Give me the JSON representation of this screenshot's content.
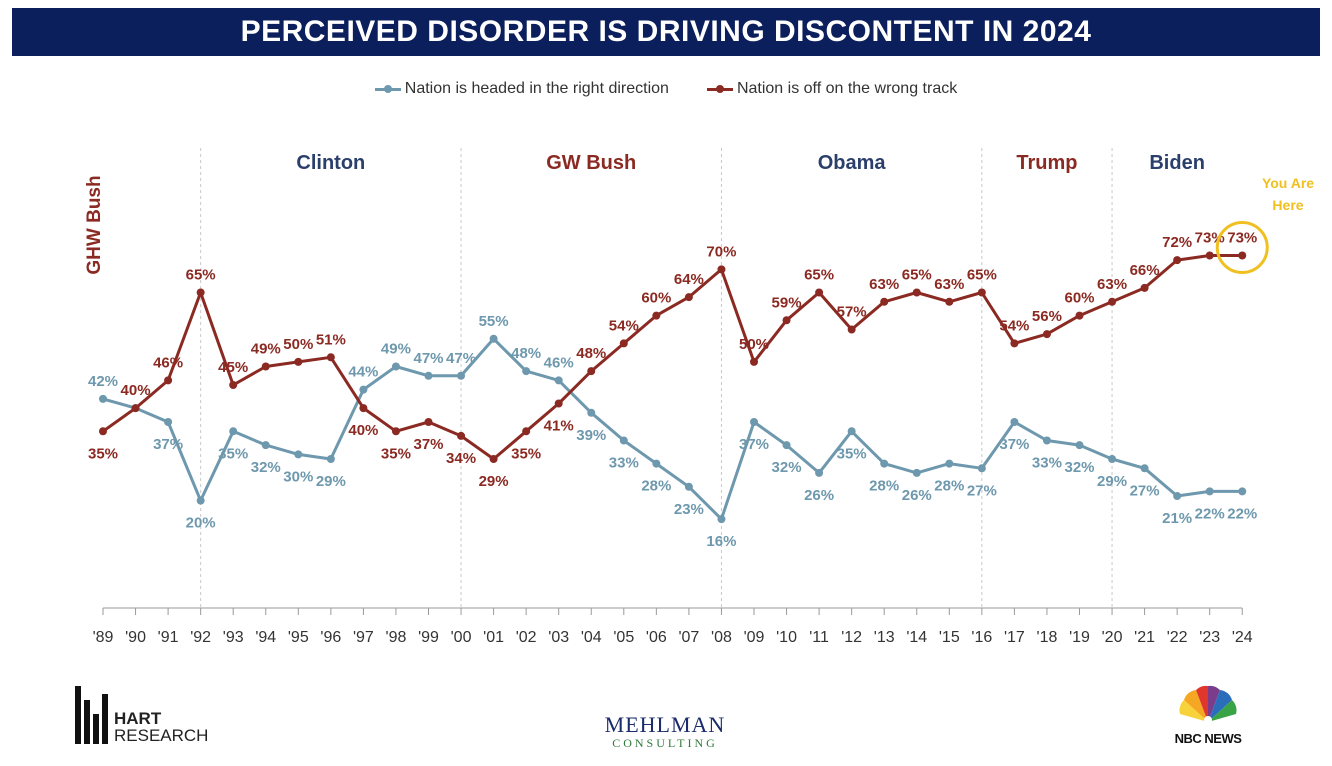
{
  "chart_data": {
    "type": "line",
    "title": "PERCEIVED DISORDER IS DRIVING DISCONTENT IN 2024",
    "categories": [
      "'89",
      "'90",
      "'91",
      "'92",
      "'93",
      "'94",
      "'95",
      "'96",
      "'97",
      "'98",
      "'99",
      "'00",
      "'01",
      "'02",
      "'03",
      "'04",
      "'05",
      "'06",
      "'07",
      "'08",
      "'09",
      "'10",
      "'11",
      "'12",
      "'13",
      "'14",
      "'15",
      "'16",
      "'17",
      "'18",
      "'19",
      "'20",
      "'21",
      "'22",
      "'23",
      "'24"
    ],
    "series": [
      {
        "name": "Nation is headed in the right direction",
        "color": "#6e98ad",
        "values": [
          42,
          40,
          37,
          20,
          35,
          32,
          30,
          29,
          44,
          49,
          47,
          47,
          55,
          48,
          46,
          39,
          33,
          28,
          23,
          16,
          37,
          32,
          26,
          35,
          28,
          26,
          28,
          27,
          37,
          33,
          32,
          29,
          27,
          21,
          22,
          22
        ],
        "labels": [
          "42%",
          "",
          "37%",
          "20%",
          "35%",
          "32%",
          "30%",
          "29%",
          "44%",
          "49%",
          "47%",
          "47%",
          "55%",
          "48%",
          "46%",
          "39%",
          "33%",
          "28%",
          "23%",
          "16%",
          "37%",
          "32%",
          "26%",
          "35%",
          "28%",
          "26%",
          "28%",
          "27%",
          "37%",
          "33%",
          "32%",
          "29%",
          "27%",
          "21%",
          "22%",
          "22%"
        ]
      },
      {
        "name": "Nation is off on the wrong track",
        "color": "#8b2a22",
        "values": [
          35,
          40,
          46,
          65,
          45,
          49,
          50,
          51,
          40,
          35,
          37,
          34,
          29,
          35,
          41,
          48,
          54,
          60,
          64,
          70,
          50,
          59,
          65,
          57,
          63,
          65,
          63,
          65,
          54,
          56,
          60,
          63,
          66,
          72,
          73,
          73
        ],
        "labels": [
          "35%",
          "40%",
          "46%",
          "65%",
          "45%",
          "49%",
          "50%",
          "51%",
          "40%",
          "35%",
          "37%",
          "34%",
          "29%",
          "35%",
          "41%",
          "48%",
          "54%",
          "60%",
          "64%",
          "70%",
          "50%",
          "59%",
          "65%",
          "57%",
          "63%",
          "65%",
          "63%",
          "65%",
          "54%",
          "56%",
          "60%",
          "63%",
          "66%",
          "72%",
          "73%",
          "73%"
        ]
      }
    ],
    "eras": [
      {
        "name": "GHW Bush",
        "color": "#8b2a22",
        "start_index": 0,
        "end_index": 3
      },
      {
        "name": "Clinton",
        "color": "#2b3f6b",
        "start_index": 3,
        "end_index": 11
      },
      {
        "name": "GW Bush",
        "color": "#8b2a22",
        "start_index": 11,
        "end_index": 19
      },
      {
        "name": "Obama",
        "color": "#2b3f6b",
        "start_index": 19,
        "end_index": 27
      },
      {
        "name": "Trump",
        "color": "#8b2a22",
        "start_index": 27,
        "end_index": 31
      },
      {
        "name": "Biden",
        "color": "#2b3f6b",
        "start_index": 31,
        "end_index": 35
      }
    ],
    "annotation": {
      "text_line1": "You Are",
      "text_line2": "Here",
      "color": "#f0c020",
      "index": 35
    },
    "ylim": [
      5,
      85
    ],
    "xlabel": "",
    "ylabel": "",
    "grid": false,
    "legend_position": "top-center"
  },
  "footer": {
    "hart_line1": "HART",
    "hart_line2": "RESEARCH",
    "mehlman_line1": "MEHLMAN",
    "mehlman_line2": "CONSULTING",
    "nbc": "NBC NEWS"
  }
}
